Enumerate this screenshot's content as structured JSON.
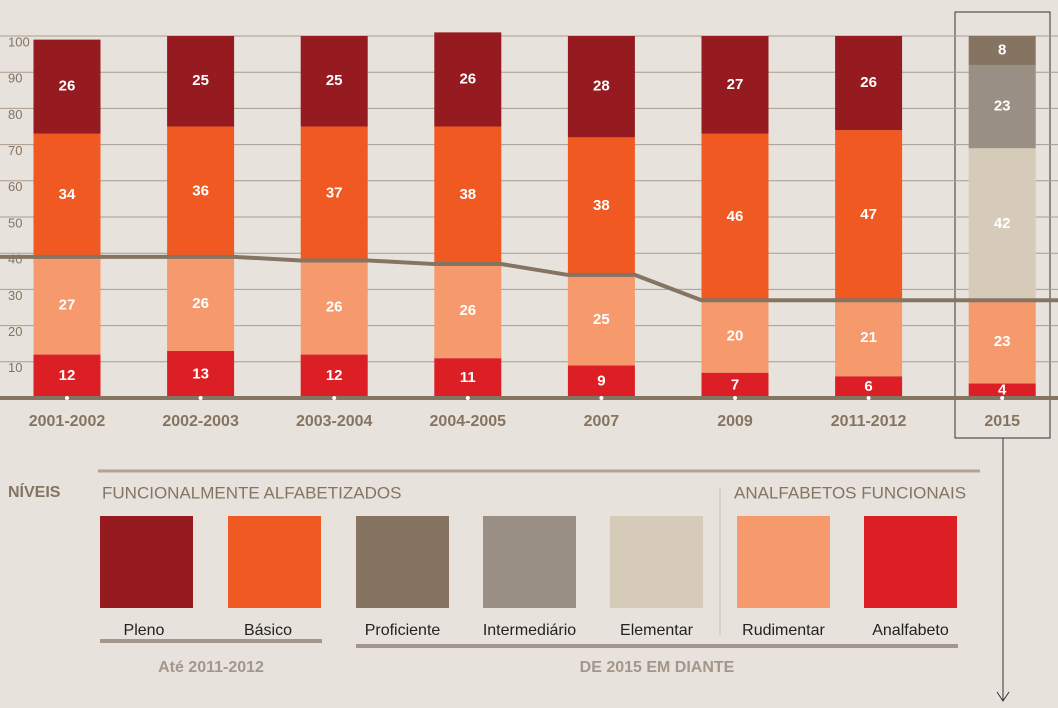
{
  "chart_data": {
    "type": "stacked_bar",
    "categories": [
      "2001-2002",
      "2002-2003",
      "2003-2004",
      "2004-2005",
      "2007",
      "2009",
      "2011-2012",
      "2015"
    ],
    "series": [
      {
        "name": "Pleno",
        "color": "#951b20",
        "values": [
          26,
          25,
          25,
          26,
          28,
          27,
          26,
          null
        ]
      },
      {
        "name": "Básico",
        "color": "#f05a22",
        "values": [
          34,
          36,
          37,
          38,
          38,
          46,
          47,
          null
        ]
      },
      {
        "name": "Proficiente",
        "color": "#857461",
        "values": [
          null,
          null,
          null,
          null,
          null,
          null,
          null,
          8
        ]
      },
      {
        "name": "Intermediário",
        "color": "#9a8f84",
        "values": [
          null,
          null,
          null,
          null,
          null,
          null,
          null,
          23
        ]
      },
      {
        "name": "Elementar",
        "color": "#d5cbb8",
        "values": [
          null,
          null,
          null,
          null,
          null,
          null,
          null,
          42
        ]
      },
      {
        "name": "Rudimentar",
        "color": "#f69a6e",
        "values": [
          27,
          26,
          26,
          26,
          25,
          20,
          21,
          23
        ]
      },
      {
        "name": "Analfabeto",
        "color": "#dc1e25",
        "values": [
          12,
          13,
          12,
          11,
          9,
          7,
          6,
          4
        ]
      }
    ],
    "ylim": [
      0,
      100
    ],
    "yticks": [
      10,
      20,
      30,
      40,
      50,
      60,
      70,
      80,
      90,
      100
    ],
    "grid": true,
    "line_color": "#857461",
    "legend": {
      "title": "NÍVEIS",
      "group_labels": [
        "FUNCIONALMENTE ALFABETIZADOS",
        "ANALFABETOS FUNCIONAIS"
      ],
      "period_labels": [
        "Até 2011-2012",
        "DE 2015 EM DIANTE"
      ]
    }
  }
}
